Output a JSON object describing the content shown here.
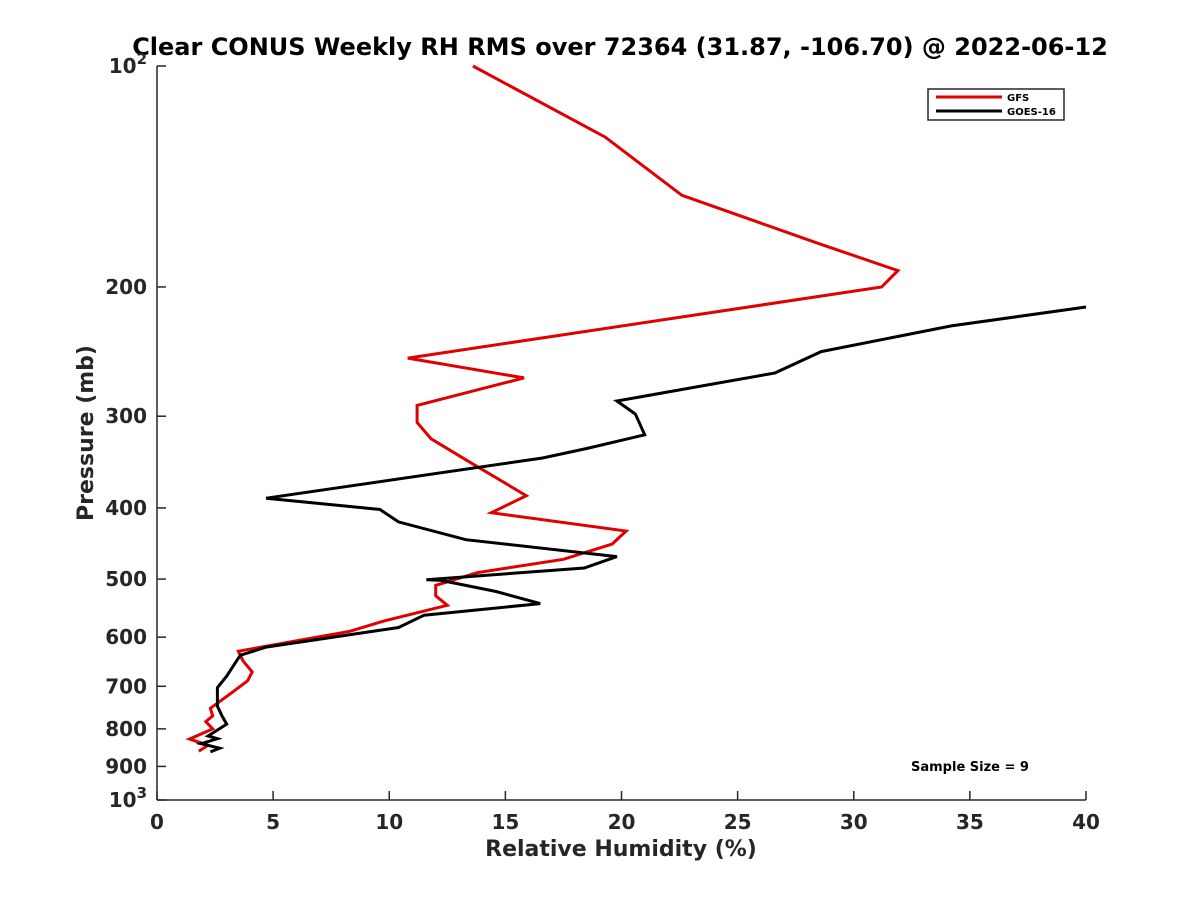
{
  "chart_data": {
    "type": "line",
    "title": "Clear CONUS Weekly RH RMS over 72364 (31.87, -106.70) @ 2022-06-12",
    "xlabel": "Relative Humidity (%)",
    "ylabel": "Pressure (mb)",
    "xlim": [
      0,
      40
    ],
    "ylim": [
      100,
      1000
    ],
    "y_scale": "log",
    "y_inverted": true,
    "grid": false,
    "legend_position": "top-right",
    "x_ticks": [
      "0",
      "5",
      "10",
      "15",
      "20",
      "25",
      "30",
      "35",
      "40"
    ],
    "y_ticks": [
      {
        "value": 100,
        "base": "10",
        "exp": "2"
      },
      {
        "value": 200,
        "label": "200"
      },
      {
        "value": 300,
        "label": "300"
      },
      {
        "value": 400,
        "label": "400"
      },
      {
        "value": 500,
        "label": "500"
      },
      {
        "value": 600,
        "label": "600"
      },
      {
        "value": 700,
        "label": "700"
      },
      {
        "value": 800,
        "label": "800"
      },
      {
        "value": 900,
        "label": "900"
      },
      {
        "value": 1000,
        "base": "10",
        "exp": "3"
      }
    ],
    "annotation": "Sample Size = 9",
    "series": [
      {
        "name": "GFS",
        "color": "#e00000",
        "points": [
          {
            "x": 13.6,
            "p": 100
          },
          {
            "x": 19.3,
            "p": 125
          },
          {
            "x": 22.6,
            "p": 150
          },
          {
            "x": 28.6,
            "p": 175
          },
          {
            "x": 31.9,
            "p": 190
          },
          {
            "x": 31.2,
            "p": 200
          },
          {
            "x": 10.8,
            "p": 250
          },
          {
            "x": 15.8,
            "p": 266
          },
          {
            "x": 11.2,
            "p": 290
          },
          {
            "x": 11.2,
            "p": 306
          },
          {
            "x": 11.8,
            "p": 322
          },
          {
            "x": 13.3,
            "p": 344
          },
          {
            "x": 15.9,
            "p": 385
          },
          {
            "x": 14.4,
            "p": 406
          },
          {
            "x": 20.2,
            "p": 430
          },
          {
            "x": 19.6,
            "p": 448
          },
          {
            "x": 17.5,
            "p": 470
          },
          {
            "x": 13.8,
            "p": 490
          },
          {
            "x": 12.0,
            "p": 510
          },
          {
            "x": 12.0,
            "p": 527
          },
          {
            "x": 12.5,
            "p": 543
          },
          {
            "x": 9.8,
            "p": 570
          },
          {
            "x": 8.3,
            "p": 589
          },
          {
            "x": 3.5,
            "p": 627
          },
          {
            "x": 3.7,
            "p": 646
          },
          {
            "x": 4.1,
            "p": 669
          },
          {
            "x": 3.9,
            "p": 688
          },
          {
            "x": 3.3,
            "p": 711
          },
          {
            "x": 2.3,
            "p": 750
          },
          {
            "x": 2.4,
            "p": 768
          },
          {
            "x": 2.1,
            "p": 782
          },
          {
            "x": 2.4,
            "p": 800
          },
          {
            "x": 1.4,
            "p": 826
          },
          {
            "x": 2.2,
            "p": 842
          },
          {
            "x": 1.8,
            "p": 858
          }
        ]
      },
      {
        "name": "GOES-16",
        "color": "#000000",
        "points": [
          {
            "x": 40.0,
            "p": 213
          },
          {
            "x": 34.2,
            "p": 226
          },
          {
            "x": 28.6,
            "p": 245
          },
          {
            "x": 26.6,
            "p": 262
          },
          {
            "x": 19.8,
            "p": 286
          },
          {
            "x": 20.6,
            "p": 298
          },
          {
            "x": 21.0,
            "p": 318
          },
          {
            "x": 18.5,
            "p": 332
          },
          {
            "x": 16.6,
            "p": 342
          },
          {
            "x": 4.7,
            "p": 388
          },
          {
            "x": 9.6,
            "p": 402
          },
          {
            "x": 10.4,
            "p": 418
          },
          {
            "x": 13.3,
            "p": 442
          },
          {
            "x": 19.8,
            "p": 466
          },
          {
            "x": 18.4,
            "p": 483
          },
          {
            "x": 11.6,
            "p": 501
          },
          {
            "x": 12.2,
            "p": 502
          },
          {
            "x": 14.6,
            "p": 520
          },
          {
            "x": 16.5,
            "p": 540
          },
          {
            "x": 11.5,
            "p": 560
          },
          {
            "x": 10.4,
            "p": 582
          },
          {
            "x": 4.7,
            "p": 619
          },
          {
            "x": 3.6,
            "p": 635
          },
          {
            "x": 3.5,
            "p": 641
          },
          {
            "x": 3.0,
            "p": 678
          },
          {
            "x": 2.6,
            "p": 703
          },
          {
            "x": 2.6,
            "p": 745
          },
          {
            "x": 2.8,
            "p": 768
          },
          {
            "x": 3.0,
            "p": 788
          },
          {
            "x": 2.2,
            "p": 818
          },
          {
            "x": 2.6,
            "p": 825
          },
          {
            "x": 1.9,
            "p": 838
          },
          {
            "x": 2.7,
            "p": 850
          },
          {
            "x": 2.3,
            "p": 860
          }
        ]
      }
    ]
  }
}
